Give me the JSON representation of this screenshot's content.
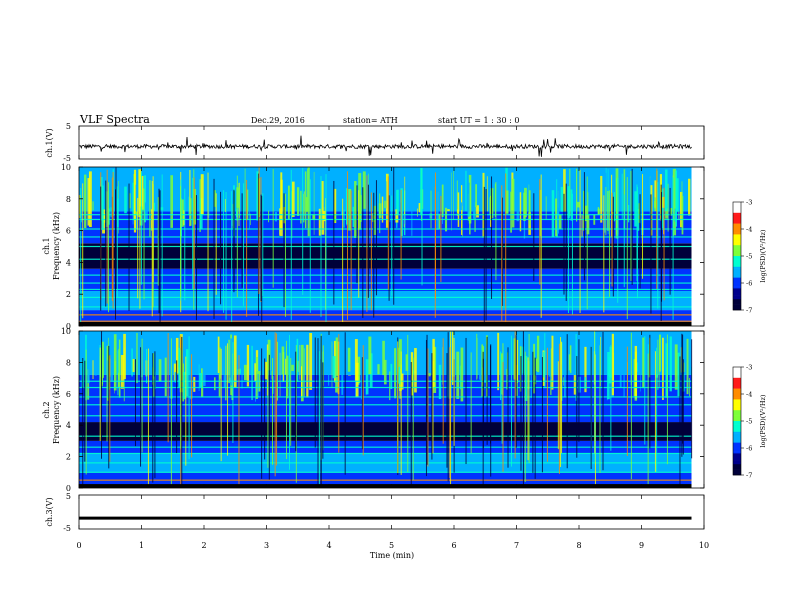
{
  "header": {
    "title": "VLF  Spectra",
    "date": "Dec.29, 2016",
    "station": "station= ATH",
    "start": "start  UT  =    1  : 30 : 0"
  },
  "colors": {
    "background": "#ffffff",
    "axis": "#000000",
    "waveform": "#000000",
    "colormap": [
      "#00003a",
      "#00008c",
      "#0033ff",
      "#00b0ff",
      "#00ffd0",
      "#7dff3a",
      "#ffff00",
      "#ff8c00",
      "#ff1a1a",
      "#ffffff"
    ]
  },
  "chart_data": [
    {
      "id": "ch1-waveform",
      "type": "line",
      "ylabel": "ch.1(V)",
      "ylim": [
        -5,
        5
      ],
      "yticks": [
        "5",
        "-5"
      ],
      "xlim": [
        0,
        10
      ],
      "grid": false,
      "series": [
        {
          "baseline_v": -1.2,
          "noise_amplitude_v": 1.0,
          "spike_amplitude_v": 3.0
        }
      ]
    },
    {
      "id": "ch1-spectrogram",
      "type": "heatmap",
      "ylabel": "ch.1\nFrequency  (kHz)",
      "ylim": [
        0,
        10
      ],
      "yticks": [
        "0",
        "2",
        "4",
        "6",
        "8",
        "10"
      ],
      "xlim": [
        0,
        10
      ],
      "colorbar": {
        "label": "log(PSD)(V²/Hz)",
        "range": [
          -7,
          -3
        ],
        "ticks": [
          "-3",
          "-4",
          "-5",
          "-6",
          "-7"
        ]
      },
      "dark_band_khz": [
        3.6,
        5.2
      ],
      "line_khz": [
        0.3,
        0.7,
        1.2,
        1.8,
        2.3,
        2.7,
        3.2,
        4.2,
        5.0,
        5.6,
        6.1,
        6.7,
        7.0
      ],
      "grid": false
    },
    {
      "id": "ch2-spectrogram",
      "type": "heatmap",
      "ylabel": "ch.2\nFrequency  (kHz)",
      "ylim": [
        0,
        10
      ],
      "yticks": [
        "0",
        "2",
        "4",
        "6",
        "8",
        "10"
      ],
      "xlim": [
        0,
        10
      ],
      "colorbar": {
        "label": "log(PSD)(V²/Hz)",
        "range": [
          -7,
          -3
        ],
        "ticks": [
          "-3",
          "-4",
          "-5",
          "-6",
          "-7"
        ]
      },
      "dark_band_khz": [
        3.0,
        4.2
      ],
      "line_khz": [
        0.5,
        1.0,
        1.6,
        2.2,
        2.6,
        3.3,
        4.6,
        5.3,
        5.8,
        6.4,
        6.8
      ],
      "grid": false
    },
    {
      "id": "ch3-waveform",
      "type": "line",
      "ylabel": "ch.3(V)",
      "ylim": [
        -5,
        5
      ],
      "yticks": [
        "5",
        "-5"
      ],
      "xlim": [
        0,
        10
      ],
      "xlabel": "Time  (min)",
      "xticks": [
        "0",
        "1",
        "2",
        "3",
        "4",
        "5",
        "6",
        "7",
        "8",
        "9",
        "10"
      ],
      "series": [
        {
          "baseline_v": -1.8
        }
      ],
      "grid": false
    }
  ]
}
